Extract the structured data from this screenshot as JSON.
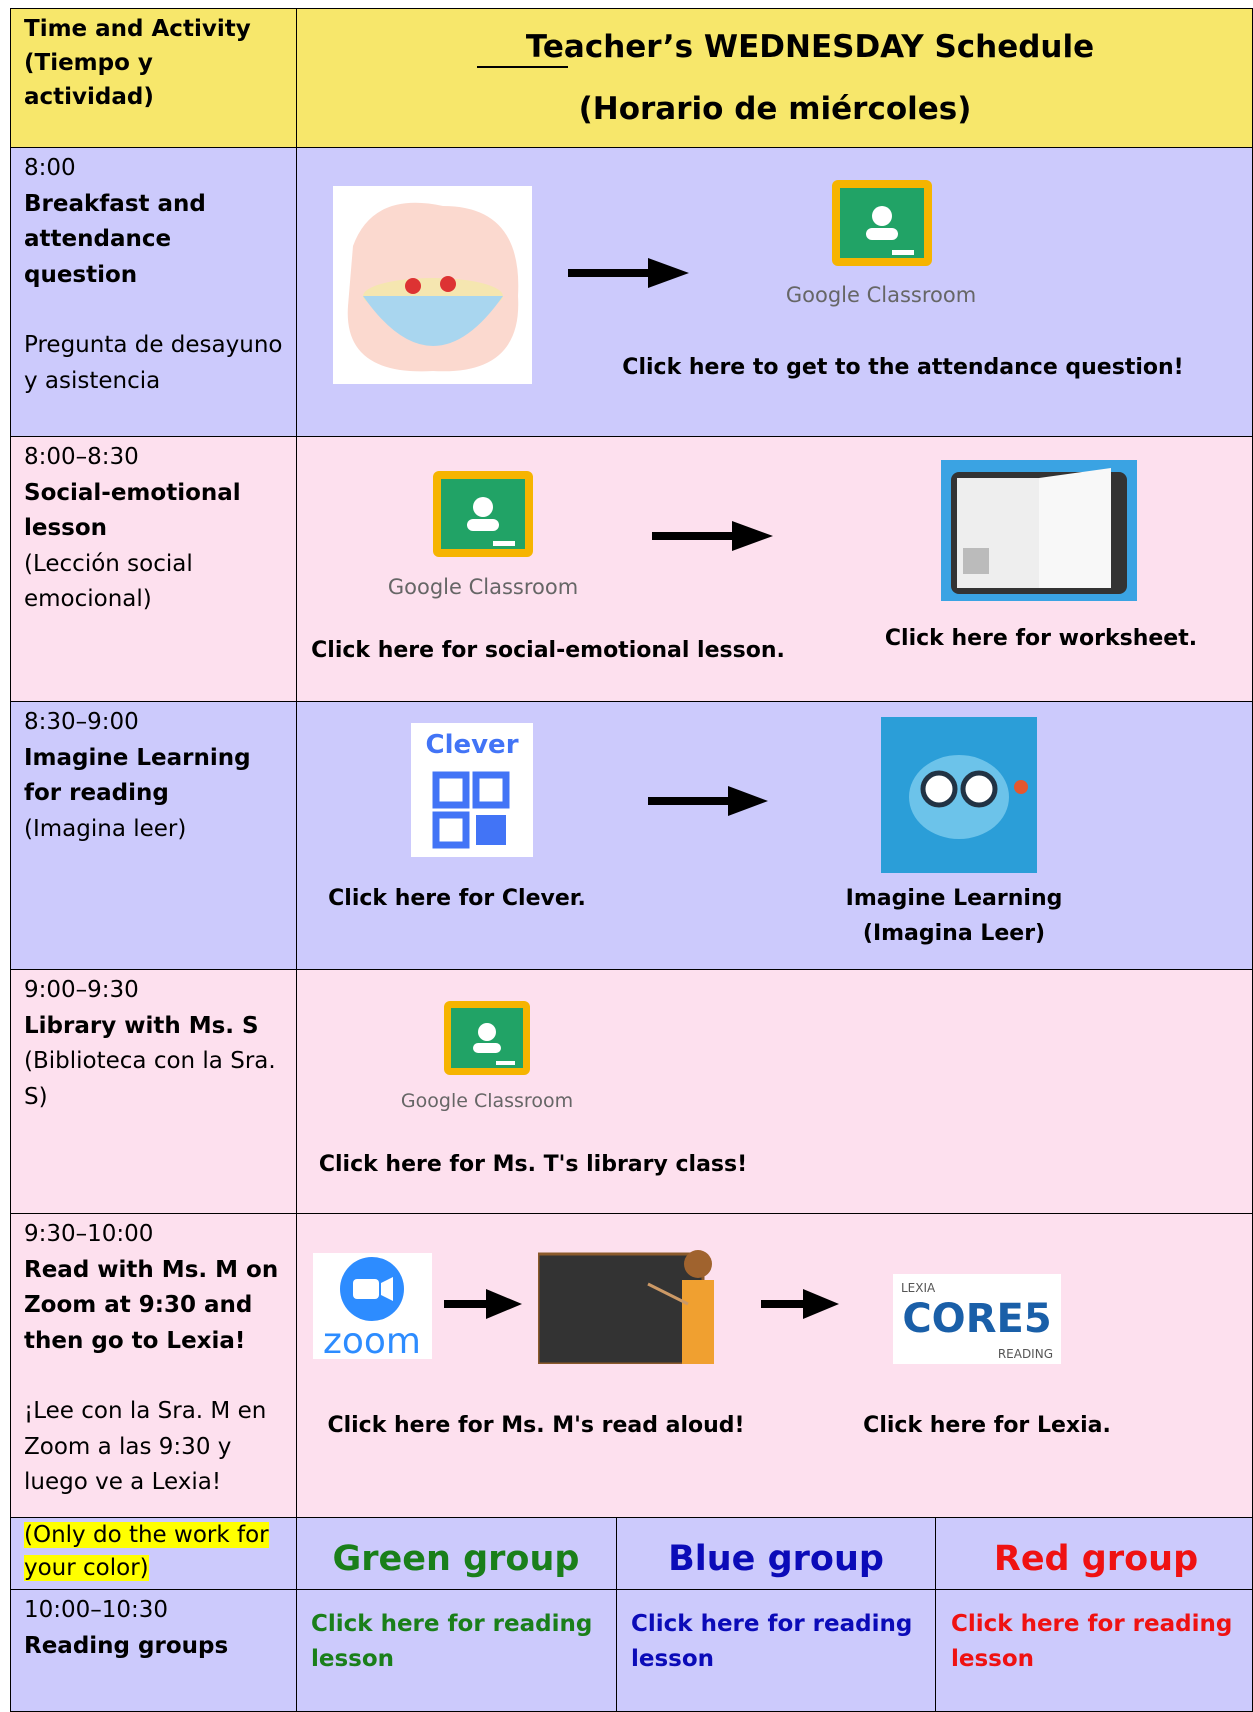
{
  "header": {
    "left": [
      "Time and Activity",
      "(Tiempo y actividad)"
    ],
    "title": "Teacher’s WEDNESDAY Schedule",
    "subtitle": "(Horario de miércoles)"
  },
  "rows": [
    {
      "time": "8:00",
      "activity": "Breakfast and attendance question",
      "spanish": "Pregunta de desayuno y asistencia",
      "logos": [
        "Google Classroom"
      ],
      "links": [
        "Click here to get to the attendance question!"
      ]
    },
    {
      "time": "8:00–8:30",
      "activity": "Social-emotional lesson",
      "spanish": "(Lección social emocional)",
      "logos": [
        "Google Classroom"
      ],
      "links": [
        "Click here for social-emotional lesson.",
        "Click here for worksheet."
      ]
    },
    {
      "time": "8:30–9:00",
      "activity": "Imagine Learning for reading",
      "spanish": "(Imagina leer)",
      "logos": [
        "Clever"
      ],
      "links": [
        "Click here for Clever.",
        "Imagine Learning",
        "(Imagina Leer)"
      ]
    },
    {
      "time": "9:00–9:30",
      "activity": "Library with Ms. S",
      "spanish": "(Biblioteca con la Sra. S)",
      "logos": [
        "Google Classroom"
      ],
      "links": [
        "Click here for Ms. T's library class!"
      ]
    },
    {
      "time": "9:30–10:00",
      "activity": "Read with Ms. M on Zoom at 9:30 and then go to Lexia!",
      "spanish": "¡Lee con la Sra. M en Zoom a las 9:30 y luego ve a Lexia!",
      "logos": [
        "zoom",
        "LEXIA",
        "CORE5",
        "READING"
      ],
      "links": [
        "Click here for Ms. M's read aloud!",
        "Click here for Lexia."
      ]
    }
  ],
  "groups": {
    "note": "(Only do the work for your color)",
    "names": [
      "Green group",
      "Blue group",
      "Red group"
    ],
    "time": "10:00–10:30",
    "activity": "Reading groups",
    "links": [
      "Click here for reading lesson",
      "Click here for reading lesson",
      "Click here for reading lesson"
    ]
  }
}
